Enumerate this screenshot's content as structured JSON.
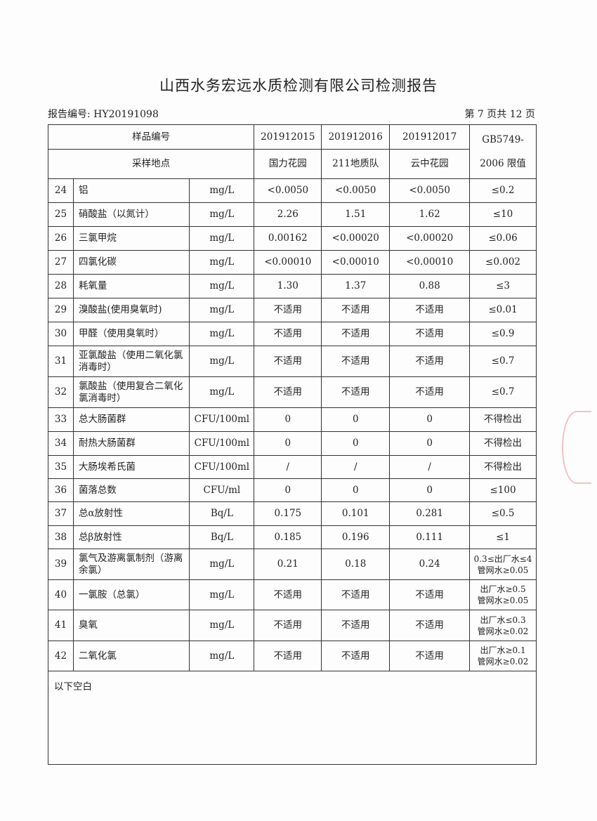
{
  "title": "山西水务宏远水质检测有限公司检测报告",
  "report_no": "报告编号: HY20191098",
  "page": "第 7 页共 12 页",
  "header": {
    "sample_no_label": "样品编号",
    "location_label": "采样地点",
    "standard_label_1": "GB5749-",
    "standard_label_2": "2006 限值",
    "samples": [
      "201912015",
      "201912016",
      "201912017"
    ],
    "locations": [
      "国力花园",
      "211地质队",
      "云中花园"
    ]
  },
  "rows": [
    {
      "no": "24",
      "item": "铝",
      "unit": "mg/L",
      "v": [
        "<0.0050",
        "<0.0050",
        "<0.0050"
      ],
      "limit": "≤0.2"
    },
    {
      "no": "25",
      "item": "硝酸盐（以氮计）",
      "unit": "mg/L",
      "v": [
        "2.26",
        "1.51",
        "1.62"
      ],
      "limit": "≤10"
    },
    {
      "no": "26",
      "item": "三氯甲烷",
      "unit": "mg/L",
      "v": [
        "0.00162",
        "<0.00020",
        "<0.00020"
      ],
      "limit": "≤0.06"
    },
    {
      "no": "27",
      "item": "四氯化碳",
      "unit": "mg/L",
      "v": [
        "<0.00010",
        "<0.00010",
        "<0.00010"
      ],
      "limit": "≤0.002"
    },
    {
      "no": "28",
      "item": "耗氧量",
      "unit": "mg/L",
      "v": [
        "1.30",
        "1.37",
        "0.88"
      ],
      "limit": "≤3"
    },
    {
      "no": "29",
      "item": "溴酸盐(使用臭氧时)",
      "unit": "mg/L",
      "v": [
        "不适用",
        "不适用",
        "不适用"
      ],
      "limit": "≤0.01"
    },
    {
      "no": "30",
      "item": "甲醛（使用臭氧时）",
      "unit": "mg/L",
      "v": [
        "不适用",
        "不适用",
        "不适用"
      ],
      "limit": "≤0.9"
    },
    {
      "no": "31",
      "item": "亚氯酸盐（使用二氧化氯消毒时）",
      "unit": "mg/L",
      "v": [
        "不适用",
        "不适用",
        "不适用"
      ],
      "limit": "≤0.7"
    },
    {
      "no": "32",
      "item": "氯酸盐（使用复合二氧化氯消毒时）",
      "unit": "mg/L",
      "v": [
        "不适用",
        "不适用",
        "不适用"
      ],
      "limit": "≤0.7"
    },
    {
      "no": "33",
      "item": "总大肠菌群",
      "unit": "CFU/100ml",
      "v": [
        "0",
        "0",
        "0"
      ],
      "limit": "不得检出"
    },
    {
      "no": "34",
      "item": "耐热大肠菌群",
      "unit": "CFU/100ml",
      "v": [
        "0",
        "0",
        "0"
      ],
      "limit": "不得检出"
    },
    {
      "no": "35",
      "item": "大肠埃希氏菌",
      "unit": "CFU/100ml",
      "v": [
        "/",
        "/",
        "/"
      ],
      "limit": "不得检出"
    },
    {
      "no": "36",
      "item": "菌落总数",
      "unit": "CFU/ml",
      "v": [
        "0",
        "0",
        "0"
      ],
      "limit": "≤100"
    },
    {
      "no": "37",
      "item": "总α放射性",
      "unit": "Bq/L",
      "v": [
        "0.175",
        "0.101",
        "0.281"
      ],
      "limit": "≤0.5"
    },
    {
      "no": "38",
      "item": "总β放射性",
      "unit": "Bq/L",
      "v": [
        "0.185",
        "0.196",
        "0.111"
      ],
      "limit": "≤1"
    },
    {
      "no": "39",
      "item": "氯气及游离氯制剂（游离余氯）",
      "unit": "mg/L",
      "v": [
        "0.21",
        "0.18",
        "0.24"
      ],
      "limit": "0.3≤出厂水≤4 管网水≥0.05"
    },
    {
      "no": "40",
      "item": "一氯胺（总氯）",
      "unit": "mg/L",
      "v": [
        "不适用",
        "不适用",
        "不适用"
      ],
      "limit": "出厂水≥0.5 管网水≥0.05"
    },
    {
      "no": "41",
      "item": "臭氧",
      "unit": "mg/L",
      "v": [
        "不适用",
        "不适用",
        "不适用"
      ],
      "limit": "出厂水≤0.3 管网水≥0.02"
    },
    {
      "no": "42",
      "item": "二氧化氯",
      "unit": "mg/L",
      "v": [
        "不适用",
        "不适用",
        "不适用"
      ],
      "limit": "出厂水≥0.1 管网水≥0.02"
    }
  ],
  "heights": [
    34,
    34,
    34,
    34,
    34,
    34,
    34,
    44,
    44,
    34,
    34,
    33,
    33,
    34,
    33,
    44,
    43,
    44,
    43
  ],
  "footer_note": "以下空白"
}
